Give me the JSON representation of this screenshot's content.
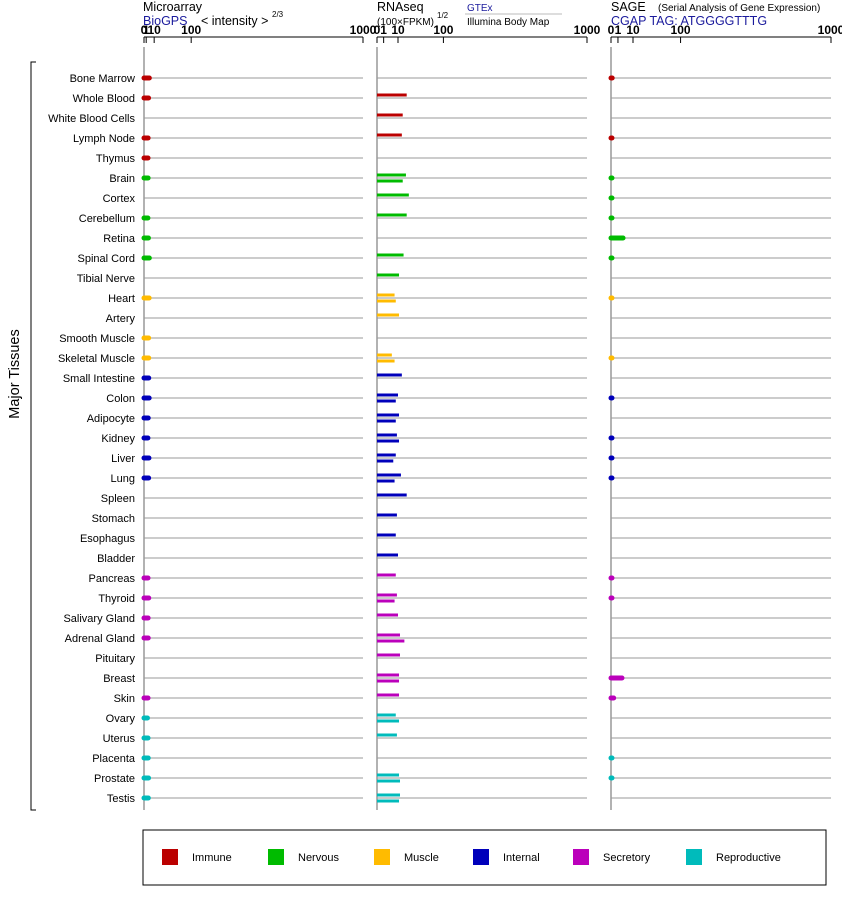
{
  "colors": {
    "immune": "#bb0000",
    "nervous": "#00bb00",
    "muscle": "#ffbb00",
    "internal": "#0000bb",
    "secretory": "#bb00bb",
    "reproductive": "#00bbbb",
    "gridline": "#999999",
    "axis": "#666666"
  },
  "header": {
    "microarray_title": "Microarray",
    "microarray_source": "BioGPS",
    "microarray_scale": "< intensity >",
    "microarray_exponent": "2/3",
    "rnaseq_title": "RNAseq",
    "rnaseq_scale": "(100×FPKM)",
    "rnaseq_exponent": "1/2",
    "rnaseq_source1": "GTEx",
    "rnaseq_source2": "Illumina Body Map",
    "sage_title": "SAGE",
    "sage_subtitle": "(Serial Analysis of Gene Expression)",
    "sage_tag": "CGAP TAG: ATGGGGTTTG"
  },
  "group_label": "Major Tissues",
  "chart_data": {
    "type": "bar",
    "orientation": "horizontal",
    "x_scale": "power",
    "ticks": [
      "0",
      "1",
      "10",
      "100",
      "1000"
    ],
    "tick_values": [
      0,
      1,
      10,
      100,
      1000
    ],
    "panels": [
      {
        "id": "microarray",
        "exponent": 0.6667,
        "xlim": [
          0,
          1000
        ]
      },
      {
        "id": "rnaseq",
        "exponent": 0.5,
        "xlim": [
          0,
          1000
        ]
      },
      {
        "id": "sage",
        "exponent": 0.5,
        "xlim": [
          0,
          1000
        ]
      }
    ],
    "categories": [
      {
        "label": "Bone Marrow",
        "group": "immune",
        "microarray": [
          3.8
        ],
        "rnaseq": [],
        "sage": [
          0.03
        ]
      },
      {
        "label": "Whole Blood",
        "group": "immune",
        "microarray": [
          3.0
        ],
        "rnaseq": [
          20
        ],
        "sage": []
      },
      {
        "label": "White Blood Cells",
        "group": "immune",
        "microarray": [],
        "rnaseq": [
          15
        ],
        "sage": []
      },
      {
        "label": "Lymph Node",
        "group": "immune",
        "microarray": [
          2.6
        ],
        "rnaseq": [
          14
        ],
        "sage": [
          0.02
        ]
      },
      {
        "label": "Thymus",
        "group": "immune",
        "microarray": [
          2.5
        ],
        "rnaseq": [],
        "sage": []
      },
      {
        "label": "Brain",
        "group": "nervous",
        "microarray": [
          2.6
        ],
        "rnaseq": [
          19,
          15
        ],
        "sage": [
          0.02
        ]
      },
      {
        "label": "Cortex",
        "group": "nervous",
        "microarray": [],
        "rnaseq": [
          23
        ],
        "sage": [
          0.01
        ]
      },
      {
        "label": "Cerebellum",
        "group": "nervous",
        "microarray": [
          2.4
        ],
        "rnaseq": [
          20
        ],
        "sage": [
          0.01
        ]
      },
      {
        "label": "Retina",
        "group": "nervous",
        "microarray": [
          2.9
        ],
        "rnaseq": [],
        "sage": [
          3.0
        ]
      },
      {
        "label": "Spinal Cord",
        "group": "nervous",
        "microarray": [
          3.8
        ],
        "rnaseq": [
          16
        ],
        "sage": [
          0.01
        ]
      },
      {
        "label": "Tibial Nerve",
        "group": "nervous",
        "microarray": [],
        "rnaseq": [
          11
        ],
        "sage": []
      },
      {
        "label": "Heart",
        "group": "muscle",
        "microarray": [
          3.6
        ],
        "rnaseq": [
          7,
          8
        ],
        "sage": [
          0.01
        ]
      },
      {
        "label": "Artery",
        "group": "muscle",
        "microarray": [],
        "rnaseq": [
          11
        ],
        "sage": []
      },
      {
        "label": "Smooth Muscle",
        "group": "muscle",
        "microarray": [
          3.1
        ],
        "rnaseq": [],
        "sage": []
      },
      {
        "label": "Skeletal Muscle",
        "group": "muscle",
        "microarray": [
          3.2
        ],
        "rnaseq": [
          5,
          7
        ],
        "sage": [
          0.01
        ]
      },
      {
        "label": "Small Intestine",
        "group": "internal",
        "microarray": [
          3.2
        ],
        "rnaseq": [
          14
        ],
        "sage": []
      },
      {
        "label": "Colon",
        "group": "internal",
        "microarray": [
          3.6
        ],
        "rnaseq": [
          10,
          8
        ],
        "sage": [
          0.02
        ]
      },
      {
        "label": "Adipocyte",
        "group": "internal",
        "microarray": [
          2.7
        ],
        "rnaseq": [
          11,
          8
        ],
        "sage": []
      },
      {
        "label": "Kidney",
        "group": "internal",
        "microarray": [
          2.4
        ],
        "rnaseq": [
          9,
          11
        ],
        "sage": [
          0.02
        ]
      },
      {
        "label": "Liver",
        "group": "internal",
        "microarray": [
          3.4
        ],
        "rnaseq": [
          8,
          6
        ],
        "sage": [
          0.02
        ]
      },
      {
        "label": "Lung",
        "group": "internal",
        "microarray": [
          3.1
        ],
        "rnaseq": [
          13,
          7
        ],
        "sage": [
          0.02
        ]
      },
      {
        "label": "Spleen",
        "group": "internal",
        "microarray": [],
        "rnaseq": [
          20
        ],
        "sage": []
      },
      {
        "label": "Stomach",
        "group": "internal",
        "microarray": [],
        "rnaseq": [
          9
        ],
        "sage": []
      },
      {
        "label": "Esophagus",
        "group": "internal",
        "microarray": [],
        "rnaseq": [
          8
        ],
        "sage": []
      },
      {
        "label": "Bladder",
        "group": "internal",
        "microarray": [],
        "rnaseq": [
          10
        ],
        "sage": []
      },
      {
        "label": "Pancreas",
        "group": "secretory",
        "microarray": [
          2.5
        ],
        "rnaseq": [
          8
        ],
        "sage": [
          0.01
        ]
      },
      {
        "label": "Thyroid",
        "group": "secretory",
        "microarray": [
          3.2
        ],
        "rnaseq": [
          9,
          7
        ],
        "sage": [
          0.01
        ]
      },
      {
        "label": "Salivary Gland",
        "group": "secretory",
        "microarray": [
          2.6
        ],
        "rnaseq": [
          10
        ],
        "sage": []
      },
      {
        "label": "Adrenal Gland",
        "group": "secretory",
        "microarray": [
          2.7
        ],
        "rnaseq": [
          12,
          17
        ],
        "sage": []
      },
      {
        "label": "Pituitary",
        "group": "secretory",
        "microarray": [],
        "rnaseq": [
          12
        ],
        "sage": []
      },
      {
        "label": "Breast",
        "group": "secretory",
        "microarray": [],
        "rnaseq": [
          11,
          11
        ],
        "sage": [
          2.5
        ]
      },
      {
        "label": "Skin",
        "group": "secretory",
        "microarray": [
          2.5
        ],
        "rnaseq": [
          11
        ],
        "sage": [
          0.15
        ]
      },
      {
        "label": "Ovary",
        "group": "reproductive",
        "microarray": [
          2.0
        ],
        "rnaseq": [
          8,
          11
        ],
        "sage": []
      },
      {
        "label": "Uterus",
        "group": "reproductive",
        "microarray": [
          2.5
        ],
        "rnaseq": [
          9
        ],
        "sage": []
      },
      {
        "label": "Placenta",
        "group": "reproductive",
        "microarray": [
          2.7
        ],
        "rnaseq": [],
        "sage": [
          0.01
        ]
      },
      {
        "label": "Prostate",
        "group": "reproductive",
        "microarray": [
          3.0
        ],
        "rnaseq": [
          11,
          12
        ],
        "sage": [
          0.01
        ]
      },
      {
        "label": "Testis",
        "group": "reproductive",
        "microarray": [
          2.8
        ],
        "rnaseq": [
          12,
          11
        ],
        "sage": []
      }
    ],
    "legend": [
      {
        "key": "immune",
        "label": "Immune"
      },
      {
        "key": "nervous",
        "label": "Nervous"
      },
      {
        "key": "muscle",
        "label": "Muscle"
      },
      {
        "key": "internal",
        "label": "Internal"
      },
      {
        "key": "secretory",
        "label": "Secretory"
      },
      {
        "key": "reproductive",
        "label": "Reproductive"
      }
    ],
    "legend_position": "bottom"
  }
}
